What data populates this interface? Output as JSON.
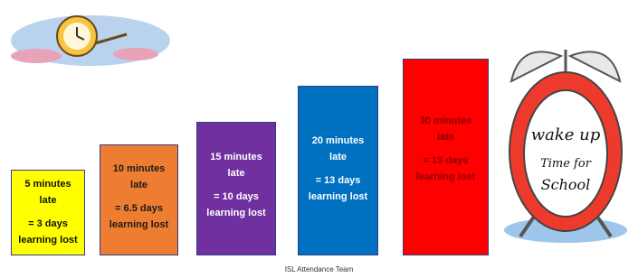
{
  "boxes": [
    {
      "lines": [
        "5 minutes",
        "late",
        "= 3 days",
        "learning lost"
      ]
    },
    {
      "lines": [
        "10 minutes",
        "late",
        "= 6.5 days",
        "learning lost"
      ]
    },
    {
      "lines": [
        "15 minutes",
        "late",
        "= 10 days",
        "learning lost"
      ]
    },
    {
      "lines": [
        "20 minutes",
        "late",
        "= 13 days",
        "learning lost"
      ]
    },
    {
      "lines": [
        "30 minutes",
        "late",
        "= 19 days",
        "learning lost"
      ]
    }
  ],
  "clock_text": [
    "wake up",
    "Time for",
    "School"
  ],
  "footer": "ISL Attendance Team"
}
